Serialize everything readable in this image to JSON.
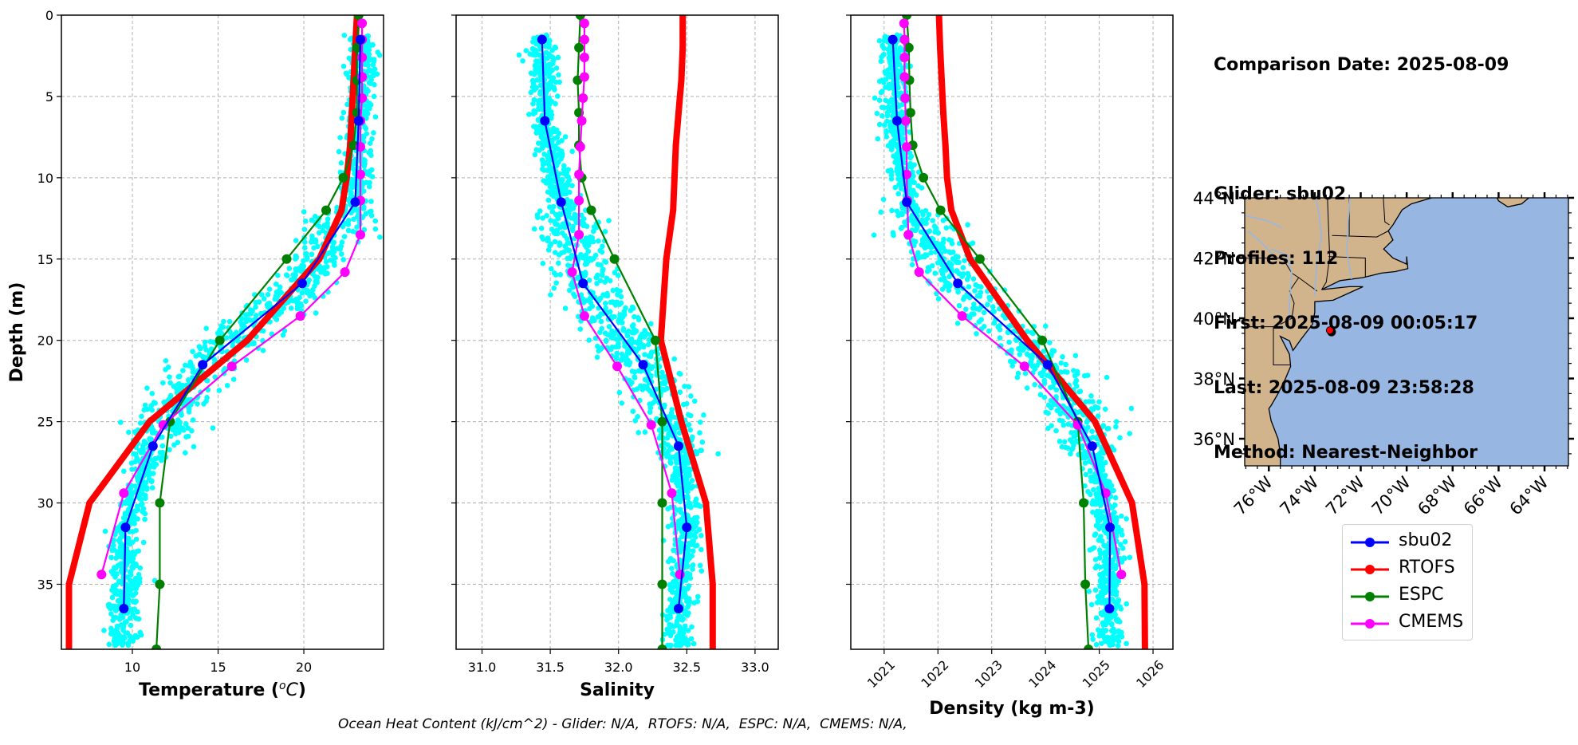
{
  "info": {
    "comparison_date": "Comparison Date: 2025-08-09",
    "glider": "Glider: sbu02",
    "profiles": "Profiles: 112",
    "first": "First: 2025-08-09 00:05:17",
    "last": "Last: 2025-08-09 23:58:28",
    "method": "Method: Nearest-Neighbor"
  },
  "footer": "Ocean Heat Content (kJ/cm^2) - Glider: N/A,  RTOFS: N/A,  ESPC: N/A,  CMEMS: N/A,",
  "legend": [
    {
      "name": "sbu02",
      "color": "#0000ff"
    },
    {
      "name": "RTOFS",
      "color": "#ff0000"
    },
    {
      "name": "ESPC",
      "color": "#008000"
    },
    {
      "name": "CMEMS",
      "color": "#ff00ff"
    }
  ],
  "colors": {
    "glider_scatter": "#00ffff",
    "land": "#d2b48c",
    "ocean": "#97b6e1",
    "river": "#97b6e1",
    "grid": "#b0b0b0"
  },
  "chart_data": [
    {
      "type": "line",
      "id": "temperature",
      "title": "",
      "xlabel": "Temperature (°C)",
      "ylabel": "Depth (m)",
      "xlim": [
        5.86,
        24.65
      ],
      "ylim": [
        39,
        0
      ],
      "xticks": [
        10,
        15,
        20
      ],
      "yticks": [
        0,
        5,
        10,
        15,
        20,
        25,
        30,
        35
      ],
      "grid": true,
      "scatter": {
        "name": "glider observations",
        "color": "#00ffff"
      },
      "series": [
        {
          "name": "RTOFS",
          "color": "#ff0000",
          "depth": [
            0,
            2,
            4,
            6,
            8,
            10,
            12,
            15,
            20,
            25,
            30,
            35,
            39
          ],
          "values": [
            23.1,
            23.0,
            22.9,
            22.8,
            22.7,
            22.5,
            22.2,
            20.9,
            16.7,
            11.0,
            7.5,
            6.3,
            6.3
          ]
        },
        {
          "name": "ESPC",
          "color": "#008000",
          "depth": [
            0,
            2,
            4,
            6,
            8,
            10,
            12,
            15,
            20,
            25,
            30,
            35,
            39
          ],
          "values": [
            23.2,
            23.1,
            23.1,
            23.1,
            22.9,
            22.3,
            21.3,
            19.0,
            15.1,
            12.2,
            11.6,
            11.6,
            11.4
          ]
        },
        {
          "name": "CMEMS",
          "color": "#ff00ff",
          "depth": [
            0.5,
            1.5,
            2.6,
            3.8,
            5.1,
            6.5,
            8.1,
            9.8,
            11.4,
            13.5,
            15.8,
            18.5,
            21.6,
            25.2,
            29.4,
            34.4
          ],
          "values": [
            23.4,
            23.4,
            23.4,
            23.4,
            23.4,
            23.3,
            23.3,
            23.3,
            23.3,
            23.3,
            22.4,
            19.8,
            15.8,
            11.8,
            9.5,
            8.2
          ]
        },
        {
          "name": "sbu02",
          "color": "#0000ff",
          "depth": [
            1.5,
            6.5,
            11.5,
            16.5,
            21.5,
            26.5,
            31.5,
            36.5
          ],
          "values": [
            23.3,
            23.2,
            23.0,
            19.9,
            14.1,
            11.2,
            9.6,
            9.5
          ]
        }
      ]
    },
    {
      "type": "line",
      "id": "salinity",
      "xlabel": "Salinity",
      "ylabel": "",
      "xlim": [
        30.81,
        33.17
      ],
      "ylim": [
        39,
        0
      ],
      "xticks": [
        31.0,
        31.5,
        32.0,
        32.5,
        33.0
      ],
      "xtick_labels": [
        "31.0",
        "31.5",
        "32.0",
        "32.5",
        "33.0"
      ],
      "yticks": [
        0,
        5,
        10,
        15,
        20,
        25,
        30,
        35
      ],
      "grid": true,
      "scatter": {
        "name": "glider observations",
        "color": "#00ffff"
      },
      "series": [
        {
          "name": "RTOFS",
          "color": "#ff0000",
          "depth": [
            0,
            2,
            4,
            6,
            8,
            10,
            12,
            15,
            20,
            25,
            30,
            35,
            39
          ],
          "values": [
            32.47,
            32.47,
            32.46,
            32.44,
            32.42,
            32.41,
            32.4,
            32.35,
            32.31,
            32.46,
            32.64,
            32.69,
            32.69
          ]
        },
        {
          "name": "ESPC",
          "color": "#008000",
          "depth": [
            0,
            2,
            4,
            6,
            8,
            10,
            12,
            15,
            20,
            25,
            30,
            35,
            39
          ],
          "values": [
            31.72,
            31.71,
            31.7,
            31.71,
            31.71,
            31.73,
            31.8,
            31.97,
            32.27,
            32.32,
            32.32,
            32.32,
            32.32
          ]
        },
        {
          "name": "CMEMS",
          "color": "#ff00ff",
          "depth": [
            0.5,
            1.5,
            2.6,
            3.8,
            5.1,
            6.5,
            8.1,
            9.8,
            11.4,
            13.5,
            15.8,
            18.5,
            21.6,
            25.2,
            29.4,
            34.4
          ],
          "values": [
            31.75,
            31.75,
            31.75,
            31.75,
            31.74,
            31.73,
            31.72,
            31.71,
            31.71,
            31.71,
            31.66,
            31.75,
            31.99,
            32.24,
            32.39,
            32.45
          ]
        },
        {
          "name": "sbu02",
          "color": "#0000ff",
          "depth": [
            1.5,
            6.5,
            11.5,
            16.5,
            21.5,
            26.5,
            31.5,
            36.5
          ],
          "values": [
            31.44,
            31.46,
            31.58,
            31.74,
            32.18,
            32.44,
            32.5,
            32.44
          ]
        }
      ]
    },
    {
      "type": "line",
      "id": "density",
      "xlabel": "Density (kg m-3)",
      "ylabel": "",
      "xlim": [
        1020.38,
        1026.37
      ],
      "ylim": [
        39,
        0
      ],
      "xticks": [
        1021,
        1022,
        1023,
        1024,
        1025,
        1026
      ],
      "yticks": [
        0,
        5,
        10,
        15,
        20,
        25,
        30,
        35
      ],
      "grid": true,
      "scatter": {
        "name": "glider observations",
        "color": "#00ffff"
      },
      "series": [
        {
          "name": "RTOFS",
          "color": "#ff0000",
          "depth": [
            0,
            2,
            4,
            6,
            8,
            10,
            12,
            15,
            20,
            25,
            30,
            35,
            39
          ],
          "values": [
            1022.02,
            1022.04,
            1022.07,
            1022.1,
            1022.14,
            1022.17,
            1022.25,
            1022.6,
            1023.66,
            1024.92,
            1025.61,
            1025.84,
            1025.85
          ]
        },
        {
          "name": "ESPC",
          "color": "#008000",
          "depth": [
            0,
            2,
            4,
            6,
            8,
            10,
            12,
            15,
            20,
            25,
            30,
            35,
            39
          ],
          "values": [
            1021.42,
            1021.46,
            1021.47,
            1021.49,
            1021.53,
            1021.73,
            1022.05,
            1022.78,
            1023.94,
            1024.6,
            1024.71,
            1024.74,
            1024.8
          ]
        },
        {
          "name": "CMEMS",
          "color": "#ff00ff",
          "depth": [
            0.5,
            1.5,
            2.6,
            3.8,
            5.1,
            6.5,
            8.1,
            9.8,
            11.4,
            13.5,
            15.8,
            18.5,
            21.6,
            25.2,
            29.4,
            34.4
          ],
          "values": [
            1021.37,
            1021.38,
            1021.38,
            1021.38,
            1021.39,
            1021.4,
            1021.42,
            1021.42,
            1021.43,
            1021.45,
            1021.65,
            1022.45,
            1023.61,
            1024.6,
            1025.12,
            1025.41
          ]
        },
        {
          "name": "sbu02",
          "color": "#0000ff",
          "depth": [
            1.5,
            6.5,
            11.5,
            16.5,
            21.5,
            26.5,
            31.5,
            36.5
          ],
          "values": [
            1021.16,
            1021.24,
            1021.42,
            1022.37,
            1024.04,
            1024.87,
            1025.2,
            1025.19
          ]
        }
      ]
    },
    {
      "type": "map",
      "id": "location-map",
      "lon_range": [
        -77.05,
        -62.96
      ],
      "lat_range": [
        35.1,
        44.0
      ],
      "lon_ticks": [
        -76,
        -74,
        -72,
        -70,
        -68,
        -66,
        -64
      ],
      "lon_tick_labels": [
        "76°W",
        "74°W",
        "72°W",
        "70°W",
        "68°W",
        "66°W",
        "64°W"
      ],
      "lat_ticks": [
        36,
        38,
        40,
        42,
        44
      ],
      "lat_tick_labels": [
        "36°N",
        "38°N",
        "40°N",
        "42°N",
        "44°N"
      ],
      "glider_position": {
        "lon": -73.34,
        "lat": 39.6,
        "color": "#ff0000"
      }
    }
  ]
}
